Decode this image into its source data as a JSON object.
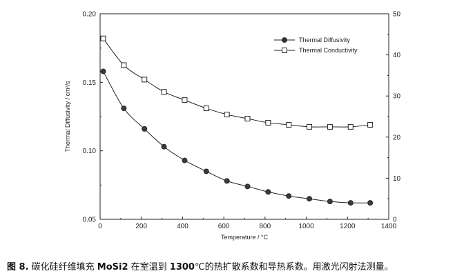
{
  "chart_data": {
    "type": "line",
    "xlabel": "Temperature / °C",
    "ylabel": "Thermal Diffusivity / cm²/s",
    "y2label": "",
    "xlim": [
      0,
      1400
    ],
    "ylim": [
      0.05,
      0.2
    ],
    "y2lim": [
      0,
      50
    ],
    "x_ticks": [
      "0",
      "200",
      "400",
      "600",
      "800",
      "1000",
      "1200",
      "1400"
    ],
    "y_ticks": [
      "0.05",
      "0.10",
      "0.15",
      "0.20"
    ],
    "y2_ticks": [
      "0",
      "10",
      "20",
      "30",
      "40",
      "50"
    ],
    "legend_position": "top-right",
    "series": [
      {
        "name": "Thermal Diffusivity",
        "axis": "left",
        "marker": "filled-circle",
        "x": [
          15,
          115,
          215,
          310,
          410,
          515,
          615,
          715,
          815,
          915,
          1015,
          1115,
          1215,
          1310
        ],
        "values": [
          0.158,
          0.131,
          0.116,
          0.103,
          0.093,
          0.085,
          0.078,
          0.074,
          0.07,
          0.067,
          0.065,
          0.063,
          0.062,
          0.062
        ]
      },
      {
        "name": "Thermal Conductivity",
        "axis": "right",
        "marker": "open-square",
        "x": [
          15,
          115,
          215,
          310,
          410,
          515,
          615,
          715,
          815,
          915,
          1015,
          1115,
          1215,
          1310
        ],
        "values": [
          44.0,
          37.5,
          34.0,
          31.0,
          29.0,
          27.0,
          25.5,
          24.5,
          23.5,
          23.0,
          22.5,
          22.5,
          22.5,
          23.0
        ]
      }
    ]
  },
  "caption": {
    "prefix": "图 8.",
    "text1": " 碳化硅纤维填充 ",
    "material": "MoSi2",
    "text2": " 在室温到 ",
    "temp": "1300",
    "text3": "℃的热扩散系数和导热系数。用激光闪射法测量。"
  }
}
